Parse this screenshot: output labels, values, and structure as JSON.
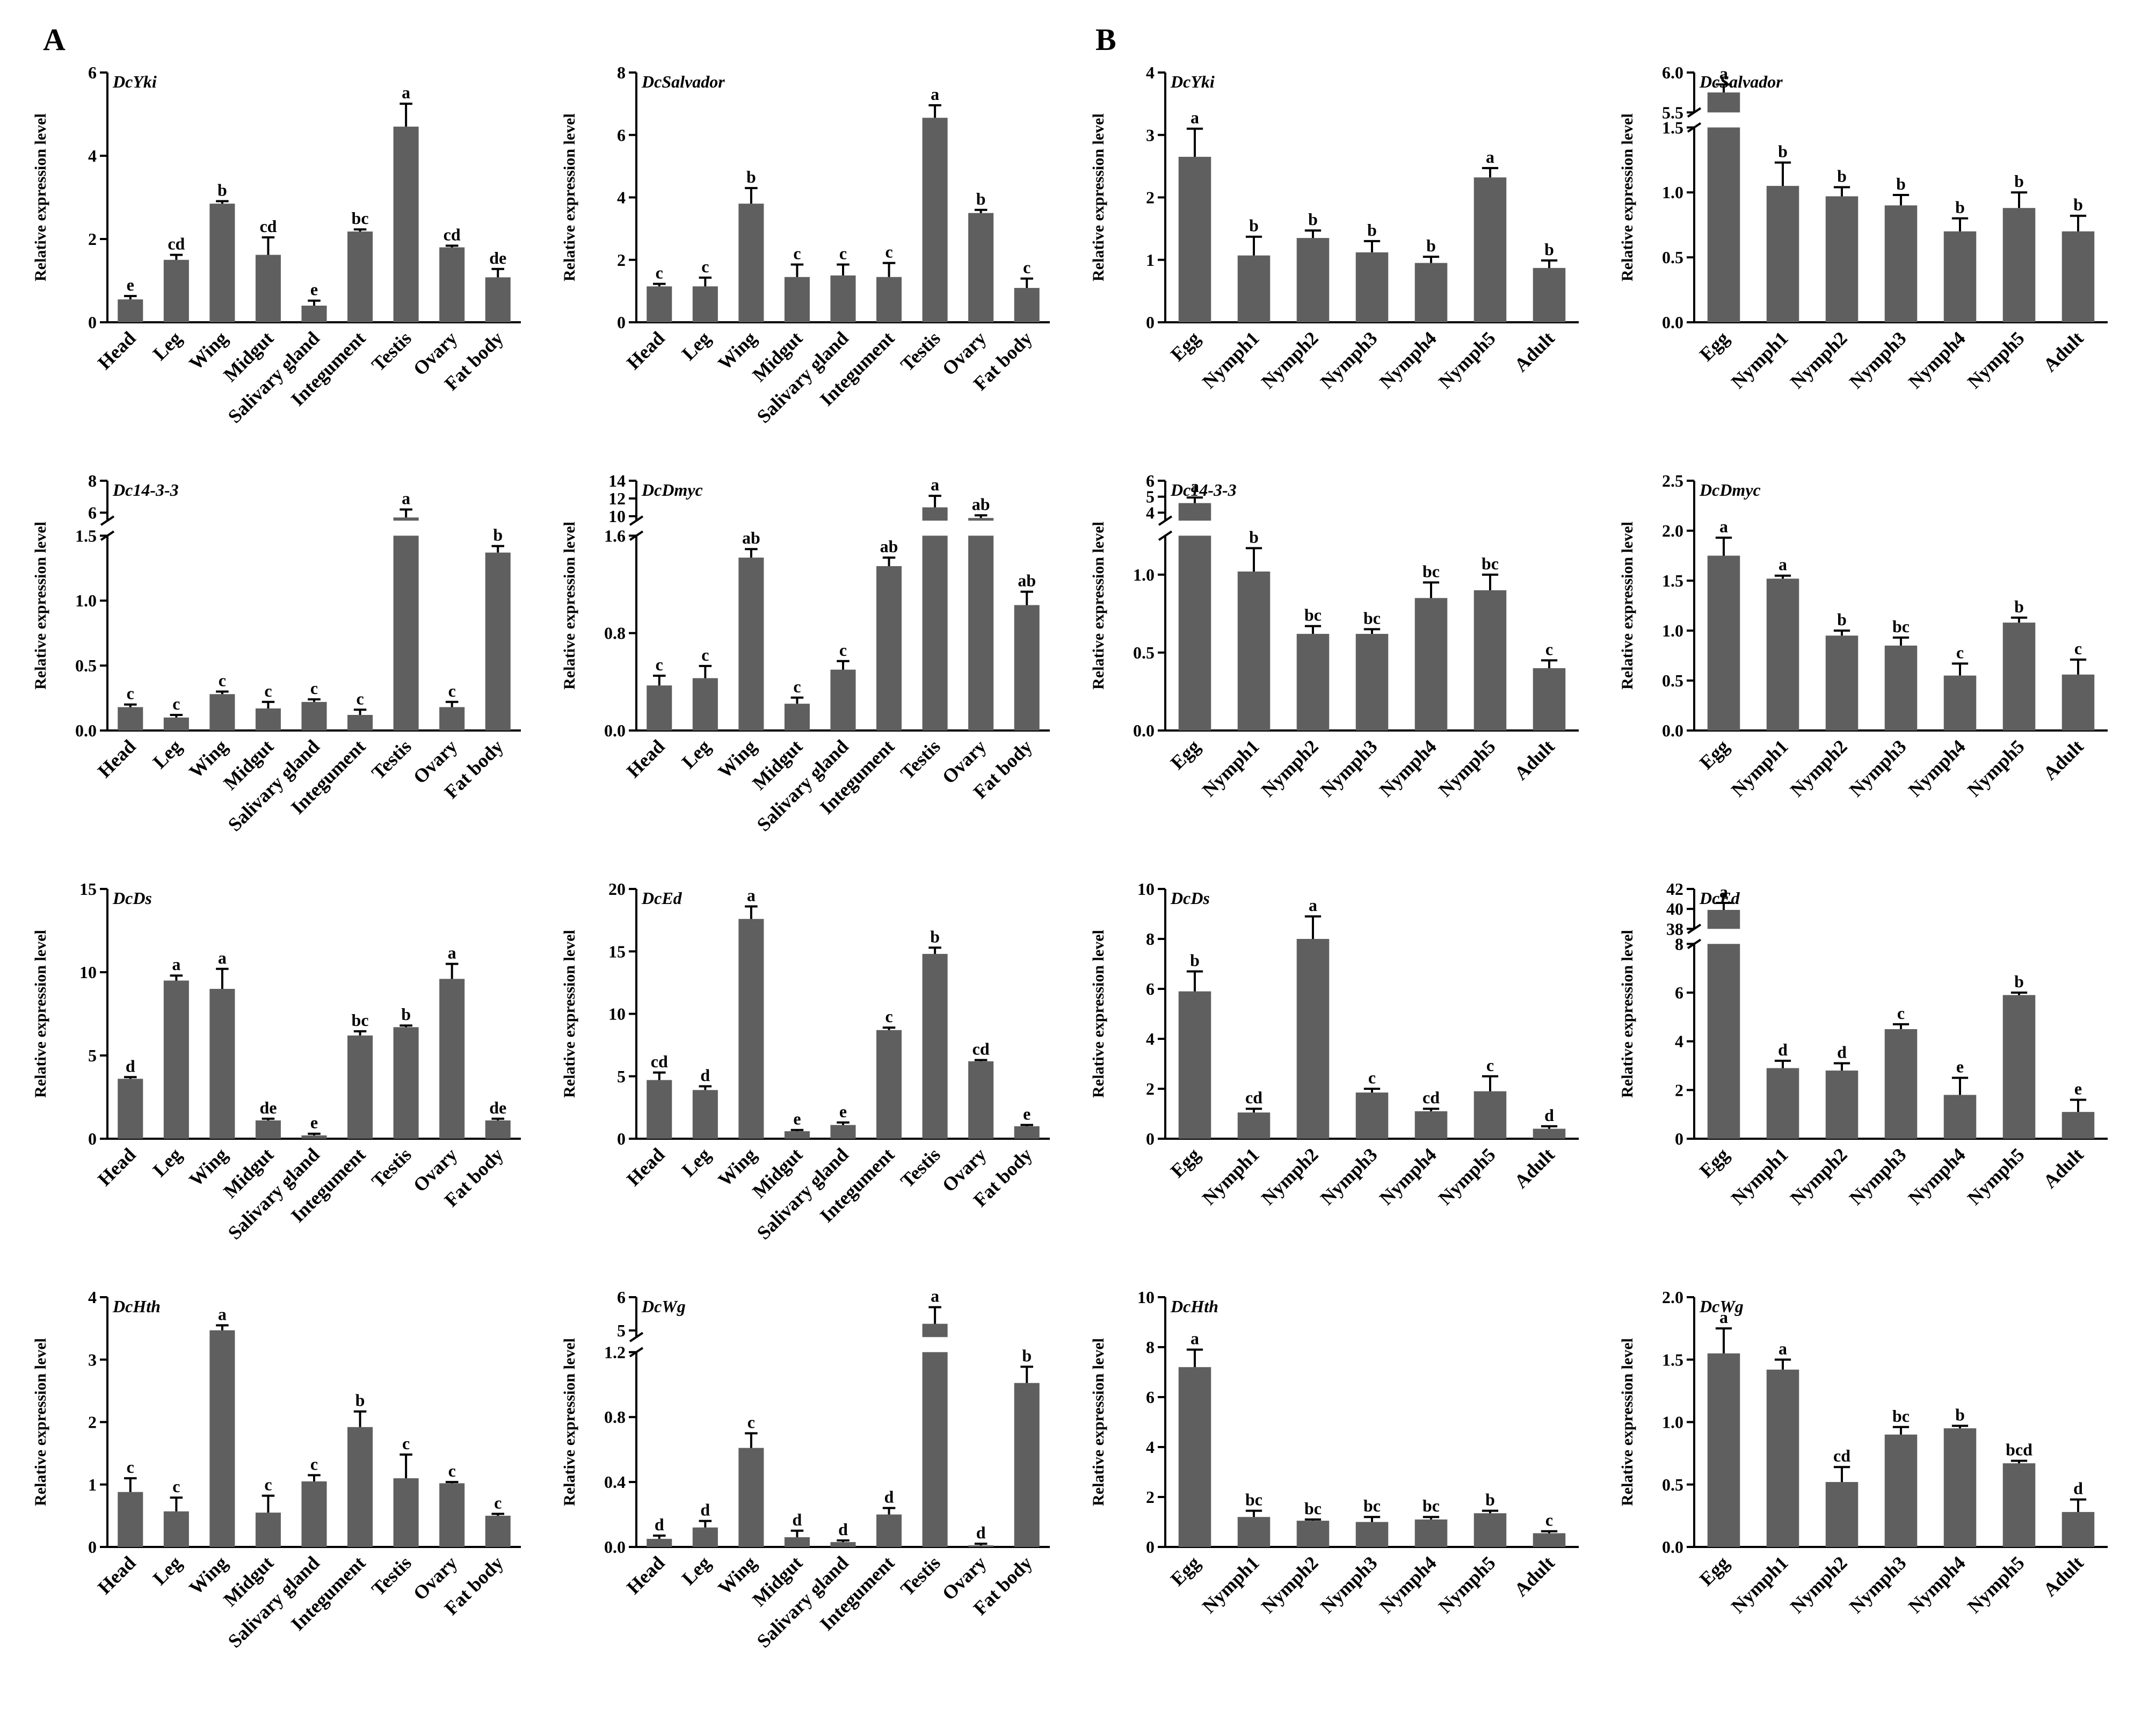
{
  "figure": {
    "panels": [
      {
        "letter": "A"
      },
      {
        "letter": "B"
      }
    ],
    "ylabel": "Relative expression level",
    "colors": {
      "bar": "#5f5f5f",
      "axis": "#000000",
      "text": "#000000"
    }
  },
  "chart_data": [
    {
      "type": "bar",
      "panel": "A",
      "title": "DcYki",
      "ylabel": "Relative expression level",
      "categories": [
        "Head",
        "Leg",
        "Wing",
        "Midgut",
        "Salivary gland",
        "Integument",
        "Testis",
        "Ovary",
        "Fat body"
      ],
      "values": [
        0.55,
        1.5,
        2.85,
        1.62,
        0.4,
        2.18,
        4.7,
        1.8,
        1.08
      ],
      "errors": [
        0.08,
        0.12,
        0.06,
        0.42,
        0.12,
        0.05,
        0.55,
        0.04,
        0.2
      ],
      "letters": [
        "e",
        "cd",
        "b",
        "cd",
        "e",
        "bc",
        "a",
        "cd",
        "de"
      ],
      "ylim": [
        0,
        6
      ],
      "yticks": [
        0,
        2,
        4,
        6
      ],
      "yticklabels": [
        "0",
        "2",
        "4",
        "6"
      ]
    },
    {
      "type": "bar",
      "panel": "A",
      "title": "DcSalvador",
      "ylabel": "Relative expression level",
      "categories": [
        "Head",
        "Leg",
        "Wing",
        "Midgut",
        "Salivary gland",
        "Integument",
        "Testis",
        "Ovary",
        "Fat body"
      ],
      "values": [
        1.15,
        1.15,
        3.8,
        1.45,
        1.5,
        1.45,
        6.55,
        3.5,
        1.1
      ],
      "errors": [
        0.08,
        0.28,
        0.5,
        0.4,
        0.35,
        0.45,
        0.4,
        0.1,
        0.3
      ],
      "letters": [
        "c",
        "c",
        "b",
        "c",
        "c",
        "c",
        "a",
        "b",
        "c"
      ],
      "ylim": [
        0,
        8
      ],
      "yticks": [
        0,
        2,
        4,
        6,
        8
      ],
      "yticklabels": [
        "0",
        "2",
        "4",
        "6",
        "8"
      ]
    },
    {
      "type": "bar",
      "panel": "B",
      "title": "DcYki",
      "ylabel": "Relative expression level",
      "categories": [
        "Egg",
        "Nymph1",
        "Nymph2",
        "Nymph3",
        "Nymph4",
        "Nymph5",
        "Adult"
      ],
      "values": [
        2.65,
        1.07,
        1.35,
        1.12,
        0.95,
        2.32,
        0.87
      ],
      "errors": [
        0.45,
        0.3,
        0.12,
        0.18,
        0.1,
        0.15,
        0.12
      ],
      "letters": [
        "a",
        "b",
        "b",
        "b",
        "b",
        "a",
        "b"
      ],
      "ylim": [
        0,
        4
      ],
      "yticks": [
        0,
        1,
        2,
        3,
        4
      ],
      "yticklabels": [
        "0",
        "1",
        "2",
        "3",
        "4"
      ]
    },
    {
      "type": "bar",
      "panel": "B",
      "title": "DcSalvador",
      "ylabel": "Relative expression level",
      "categories": [
        "Egg",
        "Nymph1",
        "Nymph2",
        "Nymph3",
        "Nymph4",
        "Nymph5",
        "Adult"
      ],
      "values": [
        5.75,
        1.05,
        0.97,
        0.9,
        0.7,
        0.88,
        0.7
      ],
      "errors": [
        0.1,
        0.18,
        0.07,
        0.08,
        0.1,
        0.12,
        0.12
      ],
      "letters": [
        "a",
        "b",
        "b",
        "b",
        "b",
        "b",
        "b"
      ],
      "ylim": [
        0,
        6.0
      ],
      "axis_break": {
        "low": [
          0,
          1.5
        ],
        "high": [
          5.5,
          6.0
        ]
      },
      "yticks": [
        0,
        0.5,
        1.0,
        1.5,
        5.5,
        6.0
      ],
      "yticklabels": [
        "0.0",
        "0.5",
        "1.0",
        "1.5",
        "5.5",
        "6.0"
      ]
    },
    {
      "type": "bar",
      "panel": "A",
      "title": "Dc14-3-3",
      "ylabel": "Relative expression level",
      "categories": [
        "Head",
        "Leg",
        "Wing",
        "Midgut",
        "Salivary gland",
        "Integument",
        "Testis",
        "Ovary",
        "Fat body"
      ],
      "values": [
        0.18,
        0.1,
        0.28,
        0.17,
        0.22,
        0.12,
        5.7,
        0.18,
        1.37
      ],
      "errors": [
        0.02,
        0.02,
        0.02,
        0.05,
        0.02,
        0.04,
        0.5,
        0.04,
        0.05
      ],
      "letters": [
        "c",
        "c",
        "c",
        "c",
        "c",
        "c",
        "a",
        "c",
        "b"
      ],
      "ylim": [
        0,
        8
      ],
      "axis_break": {
        "low": [
          0,
          1.5
        ],
        "high": [
          5.5,
          8
        ]
      },
      "yticks": [
        0,
        0.5,
        1.0,
        1.5,
        6,
        8
      ],
      "yticklabels": [
        "0.0",
        "0.5",
        "1.0",
        "1.5",
        "6",
        "8"
      ]
    },
    {
      "type": "bar",
      "panel": "A",
      "title": "DcDmyc",
      "ylabel": "Relative expression level",
      "categories": [
        "Head",
        "Leg",
        "Wing",
        "Midgut",
        "Salivary gland",
        "Integument",
        "Testis",
        "Ovary",
        "Fat body"
      ],
      "values": [
        0.37,
        0.43,
        1.42,
        0.22,
        0.5,
        1.35,
        11.0,
        9.8,
        1.03
      ],
      "errors": [
        0.08,
        0.1,
        0.07,
        0.05,
        0.07,
        0.07,
        1.3,
        0.3,
        0.11
      ],
      "letters": [
        "c",
        "c",
        "ab",
        "c",
        "c",
        "ab",
        "a",
        "ab",
        "ab"
      ],
      "ylim": [
        0,
        14
      ],
      "axis_break": {
        "low": [
          0,
          1.6
        ],
        "high": [
          9.5,
          14
        ]
      },
      "yticks": [
        0,
        0.8,
        1.6,
        10,
        12,
        14
      ],
      "yticklabels": [
        "0.0",
        "0.8",
        "1.6",
        "10",
        "12",
        "14"
      ]
    },
    {
      "type": "bar",
      "panel": "B",
      "title": "Dc14-3-3",
      "ylabel": "Relative expression level",
      "categories": [
        "Egg",
        "Nymph1",
        "Nymph2",
        "Nymph3",
        "Nymph4",
        "Nymph5",
        "Adult"
      ],
      "values": [
        4.6,
        1.02,
        0.62,
        0.62,
        0.85,
        0.9,
        0.4
      ],
      "errors": [
        0.35,
        0.15,
        0.05,
        0.03,
        0.1,
        0.1,
        0.05
      ],
      "letters": [
        "a",
        "b",
        "bc",
        "bc",
        "bc",
        "bc",
        "c"
      ],
      "ylim": [
        0,
        6
      ],
      "axis_break": {
        "low": [
          0,
          1.25
        ],
        "high": [
          3.5,
          6
        ]
      },
      "yticks": [
        0,
        0.5,
        1.0,
        4,
        5,
        6
      ],
      "yticklabels": [
        "0.0",
        "0.5",
        "1.0",
        "4",
        "5",
        "6"
      ]
    },
    {
      "type": "bar",
      "panel": "B",
      "title": "DcDmyc",
      "ylabel": "Relative expression level",
      "categories": [
        "Egg",
        "Nymph1",
        "Nymph2",
        "Nymph3",
        "Nymph4",
        "Nymph5",
        "Adult"
      ],
      "values": [
        1.75,
        1.52,
        0.95,
        0.85,
        0.55,
        1.08,
        0.56
      ],
      "errors": [
        0.18,
        0.03,
        0.05,
        0.08,
        0.12,
        0.05,
        0.15
      ],
      "letters": [
        "a",
        "a",
        "b",
        "bc",
        "c",
        "b",
        "c"
      ],
      "ylim": [
        0,
        2.5
      ],
      "yticks": [
        0,
        0.5,
        1.0,
        1.5,
        2.0,
        2.5
      ],
      "yticklabels": [
        "0.0",
        "0.5",
        "1.0",
        "1.5",
        "2.0",
        "2.5"
      ]
    },
    {
      "type": "bar",
      "panel": "A",
      "title": "DcDs",
      "ylabel": "Relative expression level",
      "categories": [
        "Head",
        "Leg",
        "Wing",
        "Midgut",
        "Salivary gland",
        "Integument",
        "Testis",
        "Ovary",
        "Fat body"
      ],
      "values": [
        3.6,
        9.5,
        9.0,
        1.1,
        0.2,
        6.2,
        6.7,
        9.6,
        1.1
      ],
      "errors": [
        0.1,
        0.3,
        1.2,
        0.1,
        0.1,
        0.25,
        0.1,
        0.9,
        0.1
      ],
      "letters": [
        "d",
        "a",
        "a",
        "de",
        "e",
        "bc",
        "b",
        "a",
        "de"
      ],
      "ylim": [
        0,
        15
      ],
      "yticks": [
        0,
        5,
        10,
        15
      ],
      "yticklabels": [
        "0",
        "5",
        "10",
        "15"
      ]
    },
    {
      "type": "bar",
      "panel": "A",
      "title": "DcEd",
      "ylabel": "Relative expression level",
      "categories": [
        "Head",
        "Leg",
        "Wing",
        "Midgut",
        "Salivary gland",
        "Integument",
        "Testis",
        "Ovary",
        "Fat body"
      ],
      "values": [
        4.7,
        3.9,
        17.6,
        0.6,
        1.1,
        8.7,
        14.8,
        6.2,
        1.0
      ],
      "errors": [
        0.6,
        0.3,
        1.0,
        0.1,
        0.2,
        0.2,
        0.5,
        0.1,
        0.1
      ],
      "letters": [
        "cd",
        "d",
        "a",
        "e",
        "e",
        "c",
        "b",
        "cd",
        "e"
      ],
      "ylim": [
        0,
        20
      ],
      "yticks": [
        0,
        5,
        10,
        15,
        20
      ],
      "yticklabels": [
        "0",
        "5",
        "10",
        "15",
        "20"
      ]
    },
    {
      "type": "bar",
      "panel": "B",
      "title": "DcDs",
      "ylabel": "Relative expression level",
      "categories": [
        "Egg",
        "Nymph1",
        "Nymph2",
        "Nymph3",
        "Nymph4",
        "Nymph5",
        "Adult"
      ],
      "values": [
        5.9,
        1.05,
        8.0,
        1.85,
        1.1,
        1.9,
        0.4
      ],
      "errors": [
        0.8,
        0.15,
        0.9,
        0.15,
        0.1,
        0.6,
        0.1
      ],
      "letters": [
        "b",
        "cd",
        "a",
        "c",
        "cd",
        "c",
        "d"
      ],
      "ylim": [
        0,
        10
      ],
      "yticks": [
        0,
        2,
        4,
        6,
        8,
        10
      ],
      "yticklabels": [
        "0",
        "2",
        "4",
        "6",
        "8",
        "10"
      ]
    },
    {
      "type": "bar",
      "panel": "B",
      "title": "DcEd",
      "ylabel": "Relative expression level",
      "categories": [
        "Egg",
        "Nymph1",
        "Nymph2",
        "Nymph3",
        "Nymph4",
        "Nymph5",
        "Adult"
      ],
      "values": [
        39.9,
        2.9,
        2.8,
        4.5,
        1.8,
        5.9,
        1.1
      ],
      "errors": [
        0.7,
        0.3,
        0.3,
        0.2,
        0.7,
        0.1,
        0.5
      ],
      "letters": [
        "a",
        "d",
        "d",
        "c",
        "e",
        "b",
        "e"
      ],
      "ylim": [
        0,
        42
      ],
      "axis_break": {
        "low": [
          0,
          8
        ],
        "high": [
          38,
          42
        ]
      },
      "yticks": [
        0,
        2,
        4,
        6,
        8,
        38,
        40,
        42
      ],
      "yticklabels": [
        "0",
        "2",
        "4",
        "6",
        "8",
        "38",
        "40",
        "42"
      ]
    },
    {
      "type": "bar",
      "panel": "A",
      "title": "DcHth",
      "ylabel": "Relative expression level",
      "categories": [
        "Head",
        "Leg",
        "Wing",
        "Midgut",
        "Salivary gland",
        "Integument",
        "Testis",
        "Ovary",
        "Fat body"
      ],
      "values": [
        0.88,
        0.57,
        3.47,
        0.55,
        1.05,
        1.92,
        1.1,
        1.02,
        0.5
      ],
      "errors": [
        0.22,
        0.22,
        0.08,
        0.27,
        0.1,
        0.25,
        0.38,
        0.02,
        0.03
      ],
      "letters": [
        "c",
        "c",
        "a",
        "c",
        "c",
        "b",
        "c",
        "c",
        "c"
      ],
      "ylim": [
        0,
        4
      ],
      "yticks": [
        0,
        1,
        2,
        3,
        4
      ],
      "yticklabels": [
        "0",
        "1",
        "2",
        "3",
        "4"
      ]
    },
    {
      "type": "bar",
      "panel": "A",
      "title": "DcWg",
      "ylabel": "Relative expression level",
      "categories": [
        "Head",
        "Leg",
        "Wing",
        "Midgut",
        "Salivary gland",
        "Integument",
        "Testis",
        "Ovary",
        "Fat body"
      ],
      "values": [
        0.05,
        0.12,
        0.61,
        0.06,
        0.03,
        0.2,
        5.2,
        0.01,
        1.01
      ],
      "errors": [
        0.02,
        0.04,
        0.09,
        0.04,
        0.01,
        0.04,
        0.5,
        0.01,
        0.1
      ],
      "letters": [
        "d",
        "d",
        "c",
        "d",
        "d",
        "d",
        "a",
        "d",
        "b"
      ],
      "ylim": [
        0,
        6
      ],
      "axis_break": {
        "low": [
          0,
          1.2
        ],
        "high": [
          4.8,
          6
        ]
      },
      "yticks": [
        0,
        0.4,
        0.8,
        1.2,
        5,
        6
      ],
      "yticklabels": [
        "0.0",
        "0.4",
        "0.8",
        "1.2",
        "5",
        "6"
      ]
    },
    {
      "type": "bar",
      "panel": "B",
      "title": "DcHth",
      "ylabel": "Relative expression level",
      "categories": [
        "Egg",
        "Nymph1",
        "Nymph2",
        "Nymph3",
        "Nymph4",
        "Nymph5",
        "Adult"
      ],
      "values": [
        7.2,
        1.2,
        1.05,
        1.0,
        1.1,
        1.35,
        0.55
      ],
      "errors": [
        0.7,
        0.25,
        0.05,
        0.2,
        0.1,
        0.1,
        0.08
      ],
      "letters": [
        "a",
        "bc",
        "bc",
        "bc",
        "bc",
        "b",
        "c"
      ],
      "ylim": [
        0,
        10
      ],
      "yticks": [
        0,
        2,
        4,
        6,
        8,
        10
      ],
      "yticklabels": [
        "0",
        "2",
        "4",
        "6",
        "8",
        "10"
      ]
    },
    {
      "type": "bar",
      "panel": "B",
      "title": "DcWg",
      "ylabel": "Relative expression level",
      "categories": [
        "Egg",
        "Nymph1",
        "Nymph2",
        "Nymph3",
        "Nymph4",
        "Nymph5",
        "Adult"
      ],
      "values": [
        1.55,
        1.42,
        0.52,
        0.9,
        0.95,
        0.67,
        0.28
      ],
      "errors": [
        0.2,
        0.08,
        0.12,
        0.06,
        0.02,
        0.02,
        0.1
      ],
      "letters": [
        "a",
        "a",
        "cd",
        "bc",
        "b",
        "bcd",
        "d"
      ],
      "ylim": [
        0,
        2.0
      ],
      "yticks": [
        0,
        0.5,
        1.0,
        1.5,
        2.0
      ],
      "yticklabels": [
        "0.0",
        "0.5",
        "1.0",
        "1.5",
        "2.0"
      ]
    }
  ]
}
